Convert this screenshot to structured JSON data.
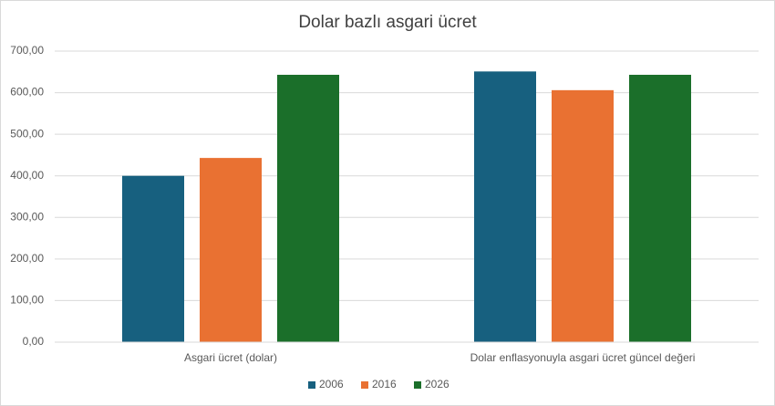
{
  "chart_data": {
    "type": "bar",
    "title": "Dolar bazlı asgari ücret",
    "categories": [
      "Asgari ücret (dolar)",
      "Dolar enflasyonuyla asgari ücret güncel değeri"
    ],
    "series": [
      {
        "name": "2006",
        "color": "#17607f",
        "values": [
          400,
          651
        ]
      },
      {
        "name": "2016",
        "color": "#e97132",
        "values": [
          443,
          606
        ]
      },
      {
        "name": "2026",
        "color": "#1b6f2a",
        "values": [
          643,
          643
        ]
      }
    ],
    "ylim": [
      0,
      700
    ],
    "yticks": [
      {
        "value": 0,
        "label": "0,00"
      },
      {
        "value": 100,
        "label": "100,00"
      },
      {
        "value": 200,
        "label": "200,00"
      },
      {
        "value": 300,
        "label": "300,00"
      },
      {
        "value": 400,
        "label": "400,00"
      },
      {
        "value": 500,
        "label": "500,00"
      },
      {
        "value": 600,
        "label": "600,00"
      },
      {
        "value": 700,
        "label": "700,00"
      }
    ],
    "grid": true,
    "legend": "bottom"
  }
}
